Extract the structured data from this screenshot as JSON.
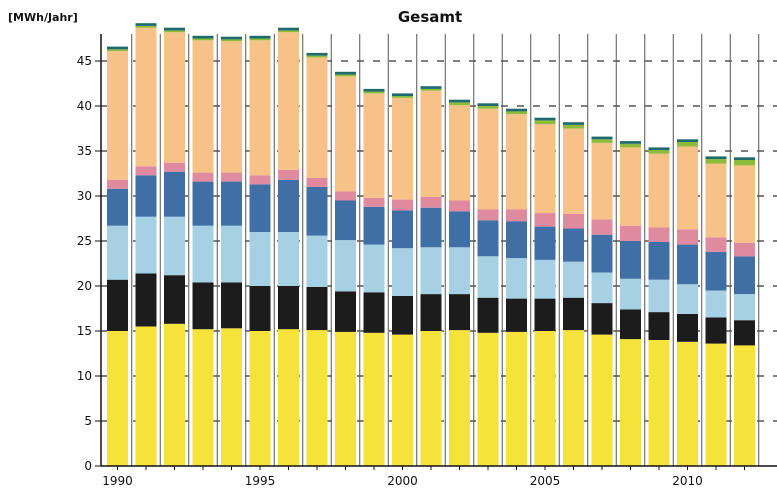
{
  "chart_data": {
    "type": "bar",
    "stacked": true,
    "title": "Gesamt",
    "ylabel": "[MWh/Jahr]",
    "xlabel": "",
    "ylim": [
      0,
      48
    ],
    "yticks": [
      0,
      5,
      10,
      15,
      20,
      25,
      30,
      35,
      40,
      45
    ],
    "xticks": [
      "1990",
      "1995",
      "2000",
      "2005",
      "2010"
    ],
    "grid": true,
    "legend": "none",
    "categories": [
      "1990",
      "1991",
      "1992",
      "1993",
      "1994",
      "1995",
      "1996",
      "1997",
      "1998",
      "1999",
      "2000",
      "2001",
      "2002",
      "2003",
      "2004",
      "2005",
      "2006",
      "2007",
      "2008",
      "2009",
      "2010",
      "2011",
      "2012"
    ],
    "series": [
      {
        "color": "#f5e23a",
        "values": [
          15.0,
          15.5,
          15.8,
          15.2,
          15.3,
          15.0,
          15.2,
          15.1,
          14.9,
          14.8,
          14.6,
          15.0,
          15.1,
          14.8,
          14.9,
          15.0,
          15.1,
          14.6,
          14.1,
          14.0,
          13.8,
          13.6,
          13.4
        ]
      },
      {
        "color": "#1c1c1c",
        "values": [
          5.7,
          5.9,
          5.4,
          5.2,
          5.1,
          5.0,
          4.8,
          4.8,
          4.5,
          4.5,
          4.3,
          4.1,
          4.0,
          3.9,
          3.7,
          3.6,
          3.6,
          3.5,
          3.3,
          3.1,
          3.1,
          2.9,
          2.8
        ]
      },
      {
        "color": "#a6d0e4",
        "values": [
          6.0,
          6.3,
          6.5,
          6.3,
          6.3,
          6.0,
          6.0,
          5.7,
          5.7,
          5.3,
          5.3,
          5.2,
          5.2,
          4.6,
          4.5,
          4.3,
          4.0,
          3.4,
          3.4,
          3.6,
          3.3,
          3.0,
          2.9
        ]
      },
      {
        "color": "#3f6fa5",
        "values": [
          4.1,
          4.6,
          5.0,
          4.9,
          4.9,
          5.3,
          5.8,
          5.4,
          4.4,
          4.2,
          4.2,
          4.4,
          4.0,
          4.0,
          4.1,
          3.7,
          3.7,
          4.2,
          4.2,
          4.2,
          4.4,
          4.3,
          4.2
        ]
      },
      {
        "color": "#e08aa0",
        "values": [
          1.0,
          1.0,
          1.0,
          1.0,
          1.0,
          1.0,
          1.1,
          1.0,
          1.0,
          1.0,
          1.2,
          1.2,
          1.2,
          1.2,
          1.3,
          1.5,
          1.6,
          1.7,
          1.7,
          1.6,
          1.7,
          1.6,
          1.5
        ]
      },
      {
        "color": "#f7c287",
        "values": [
          14.3,
          15.4,
          14.5,
          14.7,
          14.6,
          15.0,
          15.3,
          13.4,
          12.8,
          11.6,
          11.3,
          11.8,
          10.6,
          11.2,
          10.6,
          9.9,
          9.5,
          8.5,
          8.7,
          8.2,
          9.2,
          8.2,
          8.6
        ]
      },
      {
        "color": "#8dbb3b",
        "values": [
          0.2,
          0.2,
          0.2,
          0.2,
          0.2,
          0.2,
          0.2,
          0.2,
          0.2,
          0.2,
          0.2,
          0.2,
          0.3,
          0.3,
          0.3,
          0.4,
          0.4,
          0.4,
          0.4,
          0.4,
          0.5,
          0.5,
          0.6
        ]
      },
      {
        "color": "#1f6a6c",
        "values": [
          0.3,
          0.3,
          0.3,
          0.3,
          0.3,
          0.3,
          0.3,
          0.3,
          0.3,
          0.3,
          0.3,
          0.3,
          0.3,
          0.3,
          0.3,
          0.3,
          0.3,
          0.3,
          0.3,
          0.3,
          0.3,
          0.3,
          0.3
        ]
      }
    ]
  }
}
